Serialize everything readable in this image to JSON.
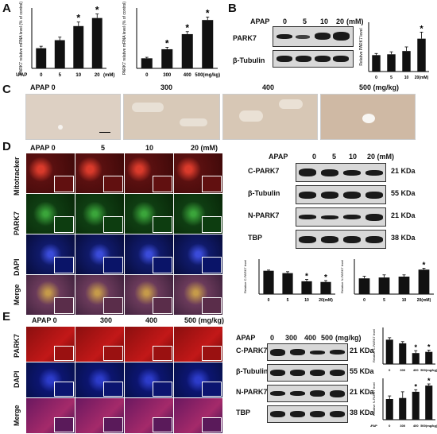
{
  "panel_labels": {
    "a": "A",
    "b": "B",
    "c": "C",
    "d": "D",
    "e": "E"
  },
  "apap": "APAP",
  "unit_mm": "(mM)",
  "unit_mgkg": "(mg/kg)",
  "axis_mrna": "PARK7 relative mRNA level (% of control)",
  "axis_rel_park7": "Relative PARK7 level",
  "axis_rel_c": "Relative C-PARK7 level",
  "axis_rel_n": "Relative N-PARK7 level",
  "doses_mm": [
    "0",
    "5",
    "10",
    "20"
  ],
  "doses_mm_units": [
    "0",
    "5",
    "10",
    "20(mM)"
  ],
  "doses_mg": [
    "0",
    "300",
    "400",
    "500"
  ],
  "doses_mg_units": [
    "0",
    "300",
    "400",
    "500(mg/kg)"
  ],
  "c_labels": [
    "APAP  0",
    "300",
    "400",
    "500  (mg/kg)"
  ],
  "d_header": [
    "APAP  0",
    "5",
    "10",
    "20  (mM)"
  ],
  "d_rows": [
    "Mitotracker",
    "PARK7",
    "DAPI",
    "Merge"
  ],
  "blot_d_header": [
    "APAP",
    "0",
    "5",
    "10",
    "20 (mM)"
  ],
  "blot_d_rows": [
    {
      "name": "C-PARK7",
      "kda": "21 KDa"
    },
    {
      "name": "β-Tubulin",
      "kda": "55 KDa"
    },
    {
      "name": "N-PARK7",
      "kda": "21 KDa"
    },
    {
      "name": "TBP",
      "kda": "38 KDa"
    }
  ],
  "b_rows": [
    "PARK7",
    "β-Tubulin"
  ],
  "e_header": [
    "APAP  0",
    "300",
    "400",
    "500 (mg/kg)"
  ],
  "e_rows": [
    "PARK7",
    "DAPI",
    "Merge"
  ],
  "blot_e_header": [
    "APAP",
    "0",
    "300",
    "400",
    "500",
    "(mg/kg)"
  ],
  "star": "*",
  "chart_data": [
    {
      "id": "A1",
      "type": "bar",
      "categories": [
        "0",
        "5",
        "10",
        "20"
      ],
      "values": [
        1.0,
        1.4,
        2.1,
        2.5
      ],
      "errors": [
        0.1,
        0.15,
        0.2,
        0.2
      ],
      "sig": [
        false,
        false,
        true,
        true
      ],
      "ylim": [
        0,
        3
      ]
    },
    {
      "id": "A2",
      "type": "bar",
      "categories": [
        "0",
        "300",
        "400",
        "500"
      ],
      "values": [
        1.0,
        1.9,
        3.4,
        4.8
      ],
      "errors": [
        0.1,
        0.2,
        0.25,
        0.3
      ],
      "sig": [
        false,
        true,
        true,
        true
      ],
      "ylim": [
        0,
        6
      ]
    },
    {
      "id": "B",
      "type": "bar",
      "categories": [
        "0",
        "5",
        "10",
        "20"
      ],
      "values": [
        1.0,
        1.05,
        1.25,
        2.0
      ],
      "errors": [
        0.1,
        0.15,
        0.25,
        0.4
      ],
      "sig": [
        false,
        false,
        false,
        true
      ],
      "ylim": [
        0,
        3
      ]
    },
    {
      "id": "D1",
      "type": "bar",
      "categories": [
        "0",
        "5",
        "10",
        "20"
      ],
      "values": [
        1.0,
        0.9,
        0.55,
        0.52
      ],
      "errors": [
        0.03,
        0.06,
        0.08,
        0.06
      ],
      "sig": [
        false,
        false,
        true,
        true
      ],
      "ylim": [
        0,
        1.5
      ]
    },
    {
      "id": "D2",
      "type": "bar",
      "categories": [
        "0",
        "5",
        "10",
        "20"
      ],
      "values": [
        0.9,
        0.95,
        1.0,
        1.4
      ],
      "errors": [
        0.12,
        0.15,
        0.1,
        0.08
      ],
      "sig": [
        false,
        false,
        false,
        true
      ],
      "ylim": [
        0,
        2
      ]
    },
    {
      "id": "E1",
      "type": "bar",
      "categories": [
        "0",
        "300",
        "400",
        "500"
      ],
      "values": [
        1.0,
        0.85,
        0.45,
        0.5
      ],
      "errors": [
        0.08,
        0.07,
        0.1,
        0.07
      ],
      "sig": [
        false,
        false,
        true,
        true
      ],
      "ylim": [
        0,
        1.5
      ]
    },
    {
      "id": "E2",
      "type": "bar",
      "categories": [
        "0",
        "300",
        "400",
        "500"
      ],
      "values": [
        1.0,
        1.05,
        1.35,
        1.65
      ],
      "errors": [
        0.15,
        0.3,
        0.1,
        0.08
      ],
      "sig": [
        false,
        false,
        true,
        true
      ],
      "ylim": [
        0,
        2
      ]
    }
  ]
}
